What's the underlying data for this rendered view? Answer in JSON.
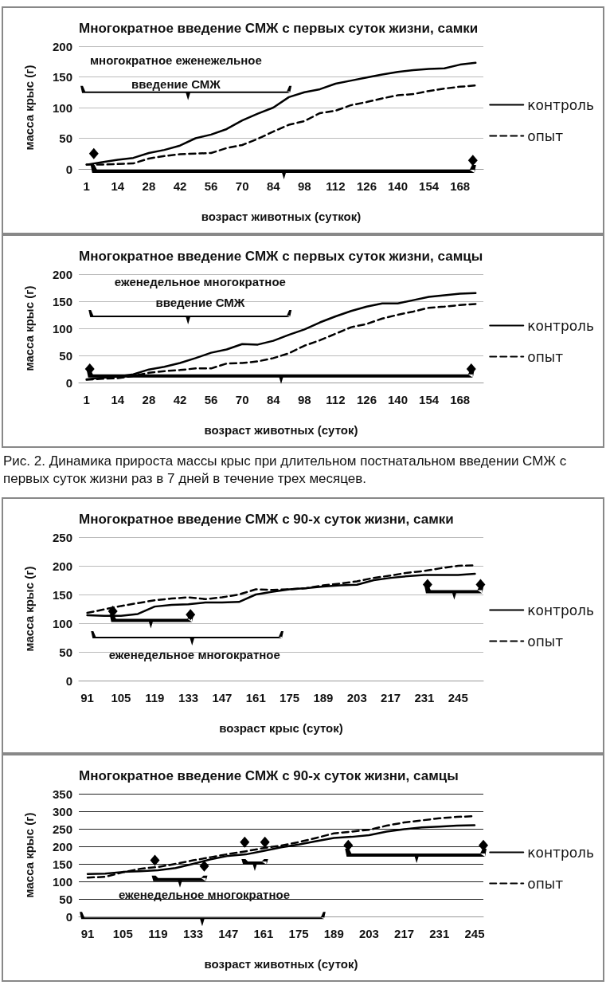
{
  "chart_data": [
    {
      "type": "line",
      "title": "Многократное введение СМЖ с первых суток жизни, самки",
      "xlabel": "возраст животных (суткок)",
      "ylabel": "масса крыс (г)",
      "annotations": [
        "многократное еженежельное введение СМЖ"
      ],
      "categories": [
        "1",
        null,
        "14",
        null,
        "28",
        null,
        "42",
        null,
        "56",
        null,
        "70",
        null,
        "84",
        null,
        "98",
        null,
        "112",
        null,
        "126",
        null,
        "140",
        null,
        "154",
        null,
        "168",
        null
      ],
      "series": [
        {
          "name": "контроль",
          "color": "#000000",
          "line_style": "solid",
          "values": [
            7,
            11,
            15,
            18,
            26,
            31,
            38,
            50,
            56,
            65,
            79,
            90,
            100,
            117,
            125,
            130,
            139,
            144,
            149,
            154,
            158,
            161,
            163,
            164,
            170,
            173
          ]
        },
        {
          "name": "опыт",
          "color": "#000000",
          "line_style": "dashed",
          "values": [
            7,
            7,
            8,
            9,
            17,
            21,
            24,
            25,
            26,
            34,
            39,
            49,
            61,
            72,
            78,
            91,
            95,
            104,
            109,
            115,
            120,
            122,
            127,
            131,
            134,
            136
          ]
        }
      ],
      "ylim": [
        0,
        200
      ],
      "yticks": [
        0,
        50,
        100,
        150,
        200
      ],
      "grid": "y",
      "legend": "right",
      "marker": "none"
    },
    {
      "type": "line",
      "title": "Многократное введение СМЖ с первых суток жизни, самцы",
      "xlabel": "возраст животных (суток)",
      "ylabel": "масса крыс (г)",
      "annotations": [
        "еженедельное многократное введение СМЖ",
        "Рис. 2. Динамика прироста массы крыс при длительном постнатальном введении СМЖ с первых суток жизни раз в 7 дней в течение трех месяцев."
      ],
      "categories": [
        "1",
        null,
        "14",
        null,
        "28",
        null,
        "42",
        null,
        "56",
        null,
        "70",
        null,
        "84",
        null,
        "98",
        null,
        "112",
        null,
        "126",
        null,
        "140",
        null,
        "154",
        null,
        "168",
        null
      ],
      "series": [
        {
          "name": "контроль",
          "color": "#000000",
          "line_style": "solid",
          "values": [
            6,
            9,
            11,
            15,
            24,
            29,
            36,
            45,
            55,
            61,
            71,
            70,
            77,
            88,
            98,
            111,
            122,
            132,
            140,
            146,
            146,
            152,
            158,
            161,
            164,
            165
          ]
        },
        {
          "name": "опыт",
          "color": "#000000",
          "line_style": "dashed",
          "values": [
            5,
            7,
            8,
            12,
            18,
            21,
            23,
            26,
            26,
            35,
            36,
            39,
            45,
            54,
            68,
            78,
            90,
            102,
            108,
            118,
            125,
            131,
            138,
            140,
            143,
            145
          ]
        }
      ],
      "ylim": [
        0,
        200
      ],
      "yticks": [
        0,
        50,
        100,
        150,
        200
      ],
      "grid": "y",
      "legend": "right",
      "marker": "none"
    },
    {
      "type": "line",
      "title": "Многократное введение СМЖ с 90-х суток жизни, самки",
      "xlabel": "возраст крыс (суток)",
      "ylabel": "масса крыс (г)",
      "annotations": [
        "еженедельное многократное"
      ],
      "categories": [
        "91",
        null,
        "105",
        null,
        "119",
        null,
        "133",
        null,
        "147",
        null,
        "161",
        null,
        "175",
        null,
        "189",
        null,
        "203",
        null,
        "217",
        null,
        "231",
        null,
        "245",
        null
      ],
      "series": [
        {
          "name": "контроль",
          "color": "#000000",
          "line_style": "solid",
          "values": [
            114,
            113,
            113,
            116,
            129,
            132,
            133,
            136,
            136,
            137,
            150,
            155,
            159,
            161,
            164,
            166,
            167,
            175,
            179,
            182,
            184,
            184,
            184,
            186
          ]
        },
        {
          "name": "опыт",
          "color": "#000000",
          "line_style": "dashed",
          "values": [
            118,
            124,
            130,
            135,
            140,
            143,
            145,
            142,
            145,
            150,
            159,
            158,
            159,
            161,
            166,
            169,
            173,
            179,
            183,
            188,
            191,
            196,
            200,
            201
          ]
        }
      ],
      "ylim": [
        0,
        250
      ],
      "yticks": [
        0,
        50,
        100,
        150,
        200,
        250
      ],
      "grid": "y",
      "legend": "right",
      "marker": "none"
    },
    {
      "type": "line",
      "title": "Многократное введение СМЖ с 90-х суток жизни, самцы",
      "xlabel": "возраст животных (суток)",
      "ylabel": "масса крыс (г)",
      "annotations": [
        "еженедельное многократное"
      ],
      "categories": [
        "91",
        null,
        "105",
        null,
        "119",
        null,
        "133",
        null,
        "147",
        null,
        "161",
        null,
        "175",
        null,
        "189",
        null,
        "203",
        null,
        "217",
        null,
        "231",
        null,
        "245"
      ],
      "series": [
        {
          "name": "контроль",
          "color": "#000000",
          "line_style": "solid",
          "values": [
            121,
            122,
            127,
            129,
            132,
            138,
            150,
            163,
            173,
            177,
            187,
            197,
            205,
            215,
            224,
            227,
            232,
            242,
            249,
            254,
            256,
            259,
            260
          ]
        },
        {
          "name": "опыт",
          "color": "#000000",
          "line_style": "dashed",
          "values": [
            111,
            113,
            126,
            136,
            141,
            150,
            160,
            169,
            178,
            186,
            195,
            202,
            212,
            224,
            237,
            242,
            247,
            259,
            268,
            274,
            280,
            284,
            286
          ]
        }
      ],
      "ylim": [
        0,
        350
      ],
      "yticks": [
        0,
        50,
        100,
        150,
        200,
        250,
        300,
        350
      ],
      "grid": "y",
      "legend": "right",
      "marker": "none"
    }
  ]
}
